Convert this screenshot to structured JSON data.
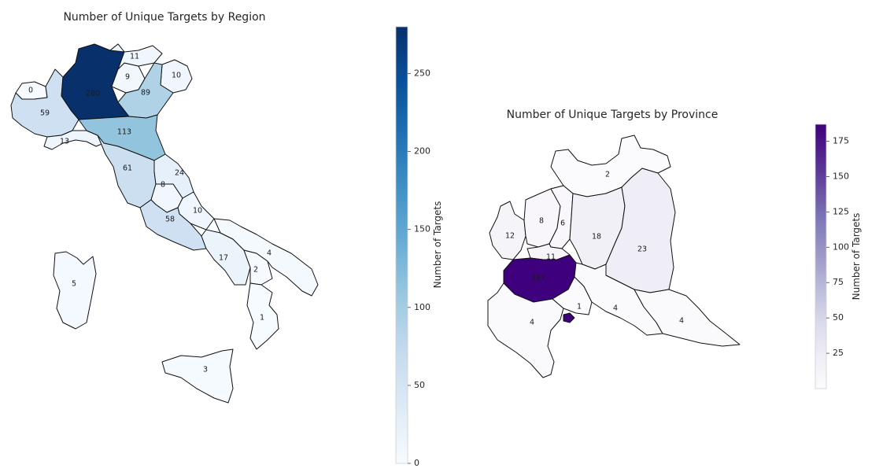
{
  "chart_data": [
    {
      "type": "choropleth",
      "title": "Number of Unique Targets by Region",
      "colormap": "Blues",
      "value_range": [
        0,
        280
      ],
      "colorbar": {
        "label": "Number of Targets",
        "ticks": [
          0,
          50,
          100,
          150,
          200,
          250
        ]
      },
      "regions": [
        {
          "id": "valle-daosta",
          "value": 0
        },
        {
          "id": "piemonte",
          "value": 59
        },
        {
          "id": "liguria",
          "value": 13
        },
        {
          "id": "lombardia",
          "value": 280
        },
        {
          "id": "trentino",
          "value": 9
        },
        {
          "id": "alto-adige",
          "value": 11
        },
        {
          "id": "friuli",
          "value": 10
        },
        {
          "id": "veneto",
          "value": 89
        },
        {
          "id": "emilia-romagna",
          "value": 113
        },
        {
          "id": "toscana",
          "value": 61
        },
        {
          "id": "marche",
          "value": 24
        },
        {
          "id": "umbria",
          "value": 8
        },
        {
          "id": "abruzzo",
          "value": 10
        },
        {
          "id": "lazio",
          "value": 58
        },
        {
          "id": "campania",
          "value": 17
        },
        {
          "id": "basilicata",
          "value": 2
        },
        {
          "id": "puglia",
          "value": 4
        },
        {
          "id": "calabria",
          "value": 1
        },
        {
          "id": "sardegna",
          "value": 5
        },
        {
          "id": "sicilia",
          "value": 3
        }
      ]
    },
    {
      "type": "choropleth",
      "title": "Number of Unique Targets by Province",
      "colormap": "Purples",
      "value_range": [
        0,
        187
      ],
      "colorbar": {
        "label": "Number of Targets",
        "ticks": [
          25,
          50,
          75,
          100,
          125,
          150,
          175
        ]
      },
      "regions": [
        {
          "id": "sondrio",
          "value": 2
        },
        {
          "id": "varese",
          "value": 12
        },
        {
          "id": "como",
          "value": 8
        },
        {
          "id": "lecco",
          "value": 6
        },
        {
          "id": "bergamo",
          "value": 18
        },
        {
          "id": "brescia",
          "value": 23
        },
        {
          "id": "monza",
          "value": 11
        },
        {
          "id": "milano",
          "value": 187
        },
        {
          "id": "lodi",
          "value": 1
        },
        {
          "id": "cremona",
          "value": 4
        },
        {
          "id": "mantova",
          "value": 4
        },
        {
          "id": "pavia",
          "value": 4
        }
      ]
    }
  ]
}
